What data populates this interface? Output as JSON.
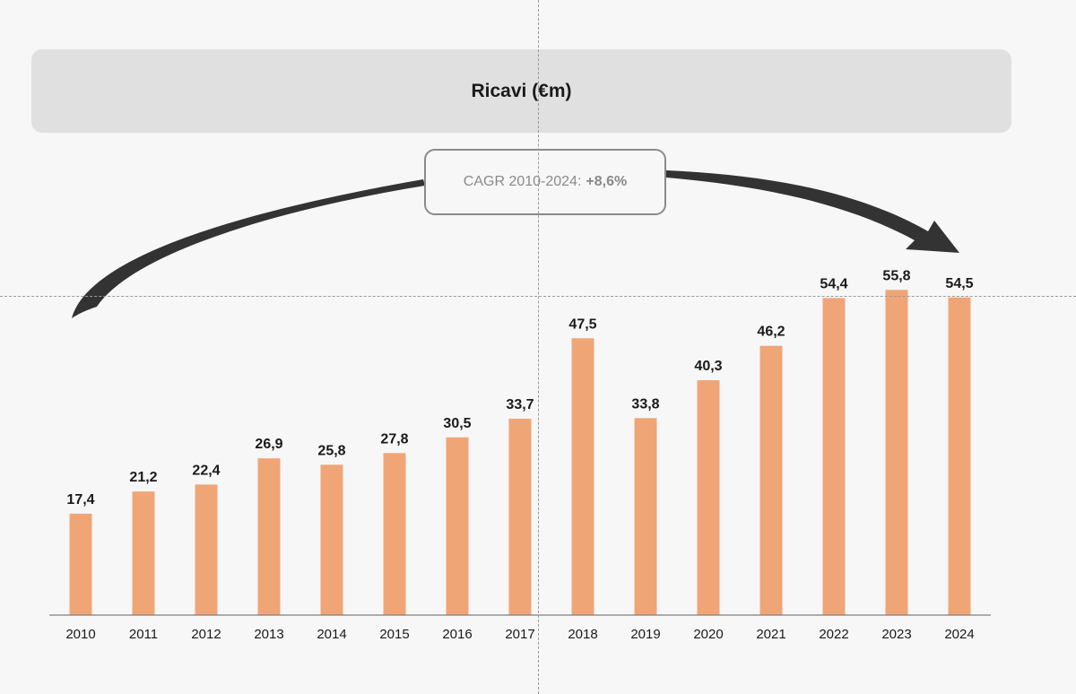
{
  "title": "Ricavi (€m)",
  "cagr": {
    "label": "CAGR 2010-2024:",
    "value": "+8,6%"
  },
  "colors": {
    "bar": "#f0a577",
    "arrow": "#333333",
    "axis": "#808080"
  },
  "chart_data": {
    "type": "bar",
    "title": "Ricavi (€m)",
    "categories": [
      "2010",
      "2011",
      "2012",
      "2013",
      "2014",
      "2015",
      "2016",
      "2017",
      "2018",
      "2019",
      "2020",
      "2021",
      "2022",
      "2023",
      "2024"
    ],
    "values": [
      17.4,
      21.2,
      22.4,
      26.9,
      25.8,
      27.8,
      30.5,
      33.7,
      47.5,
      33.8,
      40.3,
      46.2,
      54.4,
      55.8,
      54.5
    ],
    "labels": [
      "17,4",
      "21,2",
      "22,4",
      "26,9",
      "25,8",
      "27,8",
      "30,5",
      "33,7",
      "47,5",
      "33,8",
      "40,3",
      "46,2",
      "54,4",
      "55,8",
      "54,5"
    ],
    "xlabel": "",
    "ylabel": "",
    "grid": false
  }
}
